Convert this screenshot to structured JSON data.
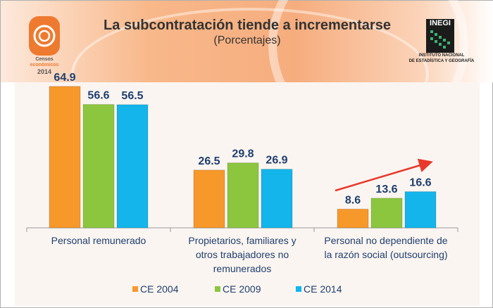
{
  "header": {
    "title": "La subcontratación tiende a incrementarse",
    "subtitle": "(Porcentajes)",
    "left_logo": {
      "lines": [
        "Censos",
        "económicos",
        "2014"
      ]
    },
    "right_logo": {
      "mark": "INEGI",
      "lines": [
        "INSTITUTO NACIONAL",
        "DE ESTADÍSTICA Y GEOGRAFÍA"
      ]
    }
  },
  "chart_data": {
    "type": "bar",
    "title": "La subcontratación tiende a incrementarse",
    "subtitle": "(Porcentajes)",
    "categories": [
      "Personal remunerado",
      "Propietarios, familiares y otros trabajadores no remunerados",
      "Personal no dependiente de la razón social (outsourcing)"
    ],
    "category_lines": [
      [
        "Personal remunerado"
      ],
      [
        "Propietarios, familiares y",
        "otros trabajadores no",
        "remunerados"
      ],
      [
        "Personal no dependiente de",
        "la razón social (outsourcing)"
      ]
    ],
    "series": [
      {
        "name": "CE 2004",
        "values": [
          64.9,
          26.5,
          8.6
        ],
        "color": "#f7982b"
      },
      {
        "name": "CE 2009",
        "values": [
          56.6,
          29.8,
          13.6
        ],
        "color": "#8cc63f"
      },
      {
        "name": "CE 2014",
        "values": [
          56.5,
          26.9,
          16.6
        ],
        "color": "#13b5ea"
      }
    ],
    "data_labels": true,
    "ylim": [
      0,
      65
    ],
    "grid": false,
    "legend": "bottom",
    "annotation": "red upward arrow over outsourcing group",
    "arrow_color": "#e8392b",
    "label_color": "#1f3e6e"
  }
}
